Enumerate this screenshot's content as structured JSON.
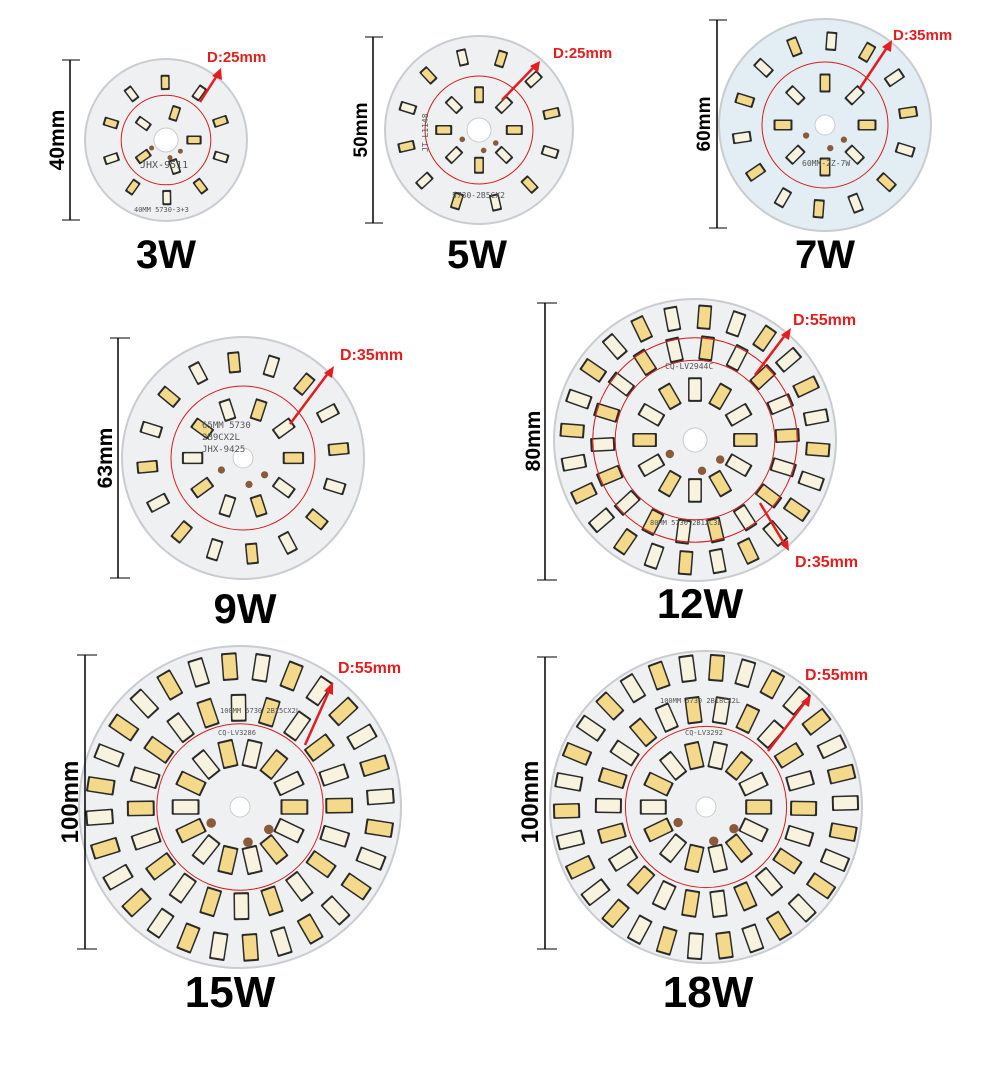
{
  "boards": [
    {
      "id": "3w",
      "diameter_label": "40mm",
      "d_label": "D:25mm",
      "d2_label": "",
      "watt_label": "3W",
      "markings": [
        "JHX-9511",
        "40MM 5730-3+3"
      ]
    },
    {
      "id": "5w",
      "diameter_label": "50mm",
      "d_label": "D:25mm",
      "d2_label": "",
      "watt_label": "5W",
      "markings": [
        "JT-L1148",
        "5730-2B5CX2"
      ]
    },
    {
      "id": "7w",
      "diameter_label": "60mm",
      "d_label": "D:35mm",
      "d2_label": "",
      "watt_label": "7W",
      "markings": [
        "60MM-2Z-7W"
      ]
    },
    {
      "id": "9w",
      "diameter_label": "63mm",
      "d_label": "D:35mm",
      "d2_label": "",
      "watt_label": "9W",
      "markings": [
        "65MM 5730",
        "2B9CX2L",
        "JHX-9425"
      ]
    },
    {
      "id": "12w",
      "diameter_label": "80mm",
      "d_label": "D:55mm",
      "d2_label": "D:35mm",
      "watt_label": "12W",
      "markings": [
        "CQ-LV2944C",
        "80MM 5730 2B12C3L"
      ]
    },
    {
      "id": "15w",
      "diameter_label": "100mm",
      "d_label": "D:55mm",
      "d2_label": "",
      "watt_label": "15W",
      "markings": [
        "100MM 5730 2B15CX2L",
        "CQ-LV3286"
      ]
    },
    {
      "id": "18w",
      "diameter_label": "100mm",
      "d_label": "D:55mm",
      "d2_label": "",
      "watt_label": "18W",
      "markings": [
        "100MM 5730 2B18CX2L",
        "CQ-LV3292"
      ]
    }
  ]
}
